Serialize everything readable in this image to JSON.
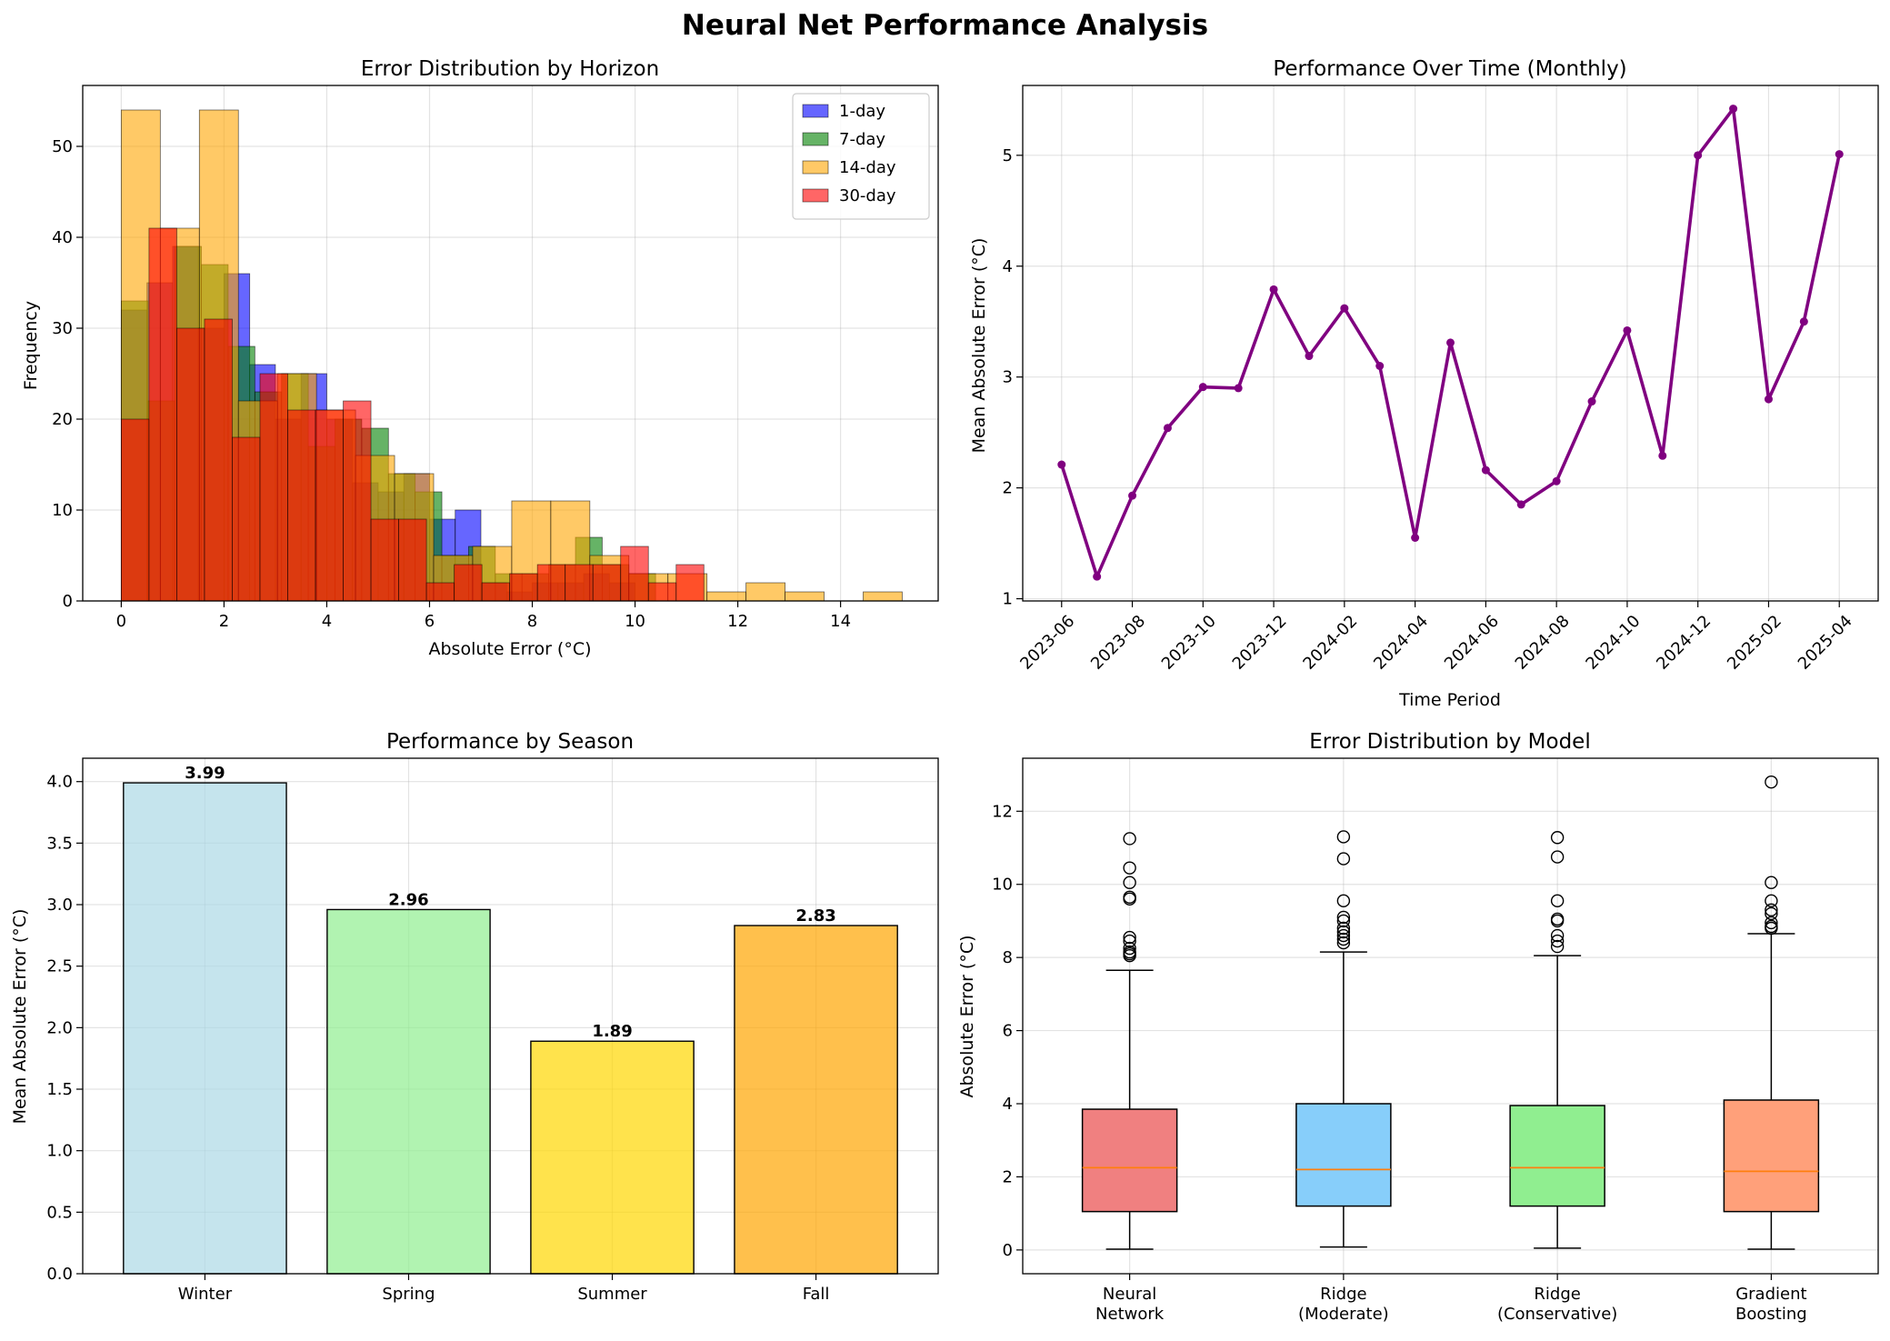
{
  "figure": {
    "title": "Neural Net Performance Analysis"
  },
  "chart_data": [
    {
      "type": "histogram",
      "title": "Error Distribution by Horizon",
      "xlabel": "Absolute Error (°C)",
      "ylabel": "Frequency",
      "xlim": [
        -0.75,
        15.9
      ],
      "ylim": [
        0,
        56.7
      ],
      "xticks": [
        0,
        2,
        4,
        6,
        8,
        10,
        12,
        14
      ],
      "yticks": [
        0,
        10,
        20,
        30,
        40,
        50
      ],
      "grid": true,
      "legend_position": "top-right",
      "series": [
        {
          "name": "1-day",
          "color": "#0000ff",
          "opacity": 0.6,
          "bin_start": 0.0,
          "bin_width": 0.5,
          "counts": [
            32,
            35,
            39,
            30,
            36,
            26,
            20,
            25,
            20,
            13,
            12,
            14,
            9,
            10,
            2,
            1,
            2,
            2,
            3,
            2
          ]
        },
        {
          "name": "7-day",
          "color": "#008000",
          "opacity": 0.6,
          "bin_start": 0.0,
          "bin_width": 0.52,
          "counts": [
            33,
            22,
            39,
            37,
            28,
            23,
            25,
            17,
            20,
            19,
            14,
            12,
            5,
            6,
            3,
            3,
            4,
            7,
            4,
            3
          ]
        },
        {
          "name": "14-day",
          "color": "#ffa500",
          "opacity": 0.6,
          "bin_start": 0.0,
          "bin_width": 0.76,
          "counts": [
            54,
            41,
            54,
            22,
            25,
            21,
            16,
            14,
            5,
            6,
            11,
            11,
            5,
            3,
            3,
            1,
            2,
            1,
            0,
            1
          ]
        },
        {
          "name": "30-day",
          "color": "#ff0000",
          "opacity": 0.6,
          "bin_start": 0.0,
          "bin_width": 0.54,
          "counts": [
            20,
            41,
            30,
            31,
            18,
            25,
            21,
            21,
            22,
            9,
            9,
            2,
            4,
            2,
            3,
            4,
            4,
            4,
            6,
            2,
            4
          ]
        }
      ]
    },
    {
      "type": "line",
      "title": "Performance Over Time (Monthly)",
      "xlabel": "Time Period",
      "ylabel": "Mean Absolute Error (°C)",
      "color": "#800080",
      "x": [
        "2023-06",
        "2023-07",
        "2023-08",
        "2023-09",
        "2023-10",
        "2023-11",
        "2023-12",
        "2024-01",
        "2024-02",
        "2024-03",
        "2024-04",
        "2024-05",
        "2024-06",
        "2024-07",
        "2024-08",
        "2024-09",
        "2024-10",
        "2024-11",
        "2024-12",
        "2025-01",
        "2025-02",
        "2025-03",
        "2025-04"
      ],
      "xticks": [
        "2023-06",
        "2023-08",
        "2023-10",
        "2023-12",
        "2024-02",
        "2024-04",
        "2024-06",
        "2024-08",
        "2024-10",
        "2024-12",
        "2025-02",
        "2025-04"
      ],
      "values": [
        2.21,
        1.2,
        1.93,
        2.54,
        2.91,
        2.9,
        3.79,
        3.19,
        3.62,
        3.1,
        1.55,
        3.31,
        2.16,
        1.85,
        2.06,
        2.78,
        3.42,
        2.29,
        5.0,
        5.42,
        2.8,
        3.5,
        5.01
      ],
      "ylim": [
        0.98,
        5.63
      ],
      "yticks": [
        1,
        2,
        3,
        4,
        5
      ],
      "grid": true
    },
    {
      "type": "bar",
      "title": "Performance by Season",
      "ylabel": "Mean Absolute Error (°C)",
      "categories": [
        "Winter",
        "Spring",
        "Summer",
        "Fall"
      ],
      "values": [
        3.99,
        2.96,
        1.89,
        2.83
      ],
      "labels": [
        "3.99",
        "2.96",
        "1.89",
        "2.83"
      ],
      "colors": [
        "#add8e6",
        "#90ee90",
        "#ffd700",
        "#ffa500"
      ],
      "ylim": [
        0,
        4.19
      ],
      "yticks": [
        "0.0",
        "0.5",
        "1.0",
        "1.5",
        "2.0",
        "2.5",
        "3.0",
        "3.5",
        "4.0"
      ],
      "grid": true
    },
    {
      "type": "box",
      "title": "Error Distribution by Model",
      "ylabel": "Absolute Error (°C)",
      "ylim": [
        -0.65,
        13.45
      ],
      "yticks": [
        0,
        2,
        4,
        6,
        8,
        10,
        12
      ],
      "grid": true,
      "boxes": [
        {
          "label": [
            "Neural",
            "Network"
          ],
          "color": "#f08080",
          "whisker_low": 0.02,
          "q1": 1.05,
          "median": 2.25,
          "q3": 3.85,
          "whisker_high": 7.65,
          "outliers": [
            8.05,
            8.1,
            8.15,
            8.25,
            8.45,
            8.55,
            9.6,
            9.65,
            10.05,
            10.45,
            11.25
          ]
        },
        {
          "label": [
            "Ridge",
            "(Moderate)"
          ],
          "color": "#87cefa",
          "whisker_low": 0.08,
          "q1": 1.2,
          "median": 2.2,
          "q3": 4.0,
          "whisker_high": 8.15,
          "outliers": [
            8.4,
            8.5,
            8.6,
            8.7,
            8.8,
            9.0,
            9.1,
            9.55,
            10.7,
            11.3
          ]
        },
        {
          "label": [
            "Ridge",
            "(Conservative)"
          ],
          "color": "#90ee90",
          "whisker_low": 0.05,
          "q1": 1.2,
          "median": 2.25,
          "q3": 3.95,
          "whisker_high": 8.05,
          "outliers": [
            8.3,
            8.45,
            8.6,
            9.0,
            9.05,
            9.55,
            10.75,
            11.28
          ]
        },
        {
          "label": [
            "Gradient",
            "Boosting"
          ],
          "color": "#ffa07a",
          "whisker_low": 0.02,
          "q1": 1.05,
          "median": 2.15,
          "q3": 4.1,
          "whisker_high": 8.65,
          "outliers": [
            8.8,
            8.85,
            8.95,
            9.2,
            9.3,
            9.55,
            10.05,
            12.8
          ]
        }
      ]
    }
  ]
}
